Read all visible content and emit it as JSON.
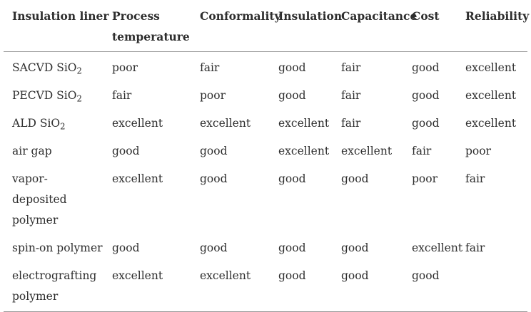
{
  "table": {
    "headers": [
      "Insulation liner",
      "Process temperature",
      "Conformality",
      "Insulation",
      "Capacitance",
      "Cost",
      "Reliability"
    ],
    "rows": [
      {
        "liner": "SACVD SiO",
        "liner_sub": "2",
        "cells": [
          "poor",
          "fair",
          "good",
          "fair",
          "good",
          "excellent"
        ]
      },
      {
        "liner": "PECVD SiO",
        "liner_sub": "2",
        "cells": [
          "fair",
          "poor",
          "good",
          "fair",
          "good",
          "excellent"
        ]
      },
      {
        "liner": "ALD SiO",
        "liner_sub": "2",
        "cells": [
          "excellent",
          "excellent",
          "excellent",
          "fair",
          "good",
          "excellent"
        ]
      },
      {
        "liner": "air gap",
        "cells": [
          "good",
          "good",
          "excellent",
          "excellent",
          "fair",
          "poor"
        ]
      },
      {
        "liner": "vapor-deposited polymer",
        "cells": [
          "excellent",
          "good",
          "good",
          "good",
          "poor",
          "fair"
        ]
      },
      {
        "liner": "spin-on polymer",
        "cells": [
          "good",
          "good",
          "good",
          "good",
          "excellent",
          "fair"
        ]
      },
      {
        "liner": "electrografting polymer",
        "cells": [
          "excellent",
          "excellent",
          "good",
          "good",
          "good",
          ""
        ]
      }
    ]
  }
}
